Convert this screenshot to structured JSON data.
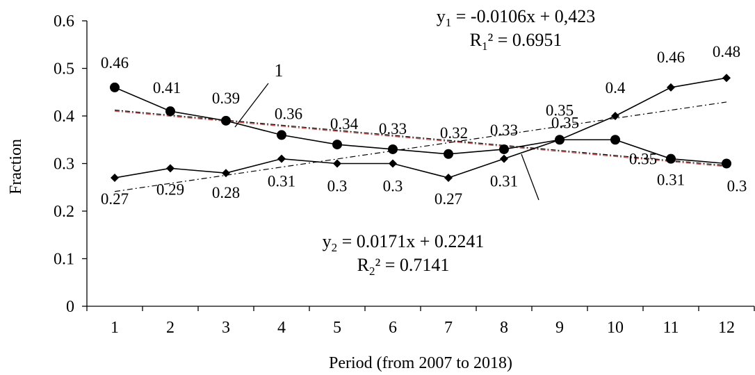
{
  "chart_data": {
    "type": "line",
    "xlabel": "Period (from 2007 to 2018)",
    "ylabel": "Fraction",
    "x": [
      1,
      2,
      3,
      4,
      5,
      6,
      7,
      8,
      9,
      10,
      11,
      12
    ],
    "xticks": [
      "1",
      "2",
      "3",
      "4",
      "5",
      "6",
      "7",
      "8",
      "9",
      "10",
      "11",
      "12"
    ],
    "ylim": [
      0,
      0.6
    ],
    "yticks": [
      "0",
      "0.1",
      "0.2",
      "0.3",
      "0.4",
      "0.5",
      "0.6"
    ],
    "grid": false,
    "series": [
      {
        "marker": "circle",
        "values": [
          0.46,
          0.41,
          0.39,
          0.36,
          0.34,
          0.33,
          0.32,
          0.33,
          0.35,
          0.35,
          0.31,
          0.3
        ],
        "labels": [
          "0.46",
          "0.41",
          "0.39",
          "0.36",
          "0.34",
          "0.33",
          "0.32",
          "0.33",
          "0.35",
          "0.35",
          "0.31",
          "0.3"
        ],
        "callout": "1",
        "trendline": {
          "slope": -0.0106,
          "intercept": 0.423,
          "style": "dash-dot",
          "color": "#c0504d"
        }
      },
      {
        "marker": "diamond",
        "values": [
          0.27,
          0.29,
          0.28,
          0.31,
          0.3,
          0.3,
          0.27,
          0.31,
          0.35,
          0.4,
          0.46,
          0.48
        ],
        "labels": [
          "0.27",
          "0.29",
          "0.28",
          "0.31",
          "0.3",
          "0.3",
          "0.27",
          "0.31",
          "0.35",
          "0.4",
          "0.46",
          "0.48"
        ],
        "trendline": {
          "slope": 0.0171,
          "intercept": 0.2241,
          "style": "dash-dot",
          "color": "#000000"
        }
      }
    ],
    "equations": [
      {
        "y_sym": "y",
        "sub": "1",
        "rhs": " = -0.0106x + 0,423",
        "r_sym": "R",
        "r_sub": "1",
        "r_rhs": "² = 0.6951"
      },
      {
        "y_sym": "y",
        "sub": "2",
        "rhs": " = 0.0171x + 0.2241",
        "r_sym": "R",
        "r_sub": "2",
        "r_rhs": "² = 0.7141"
      }
    ]
  }
}
